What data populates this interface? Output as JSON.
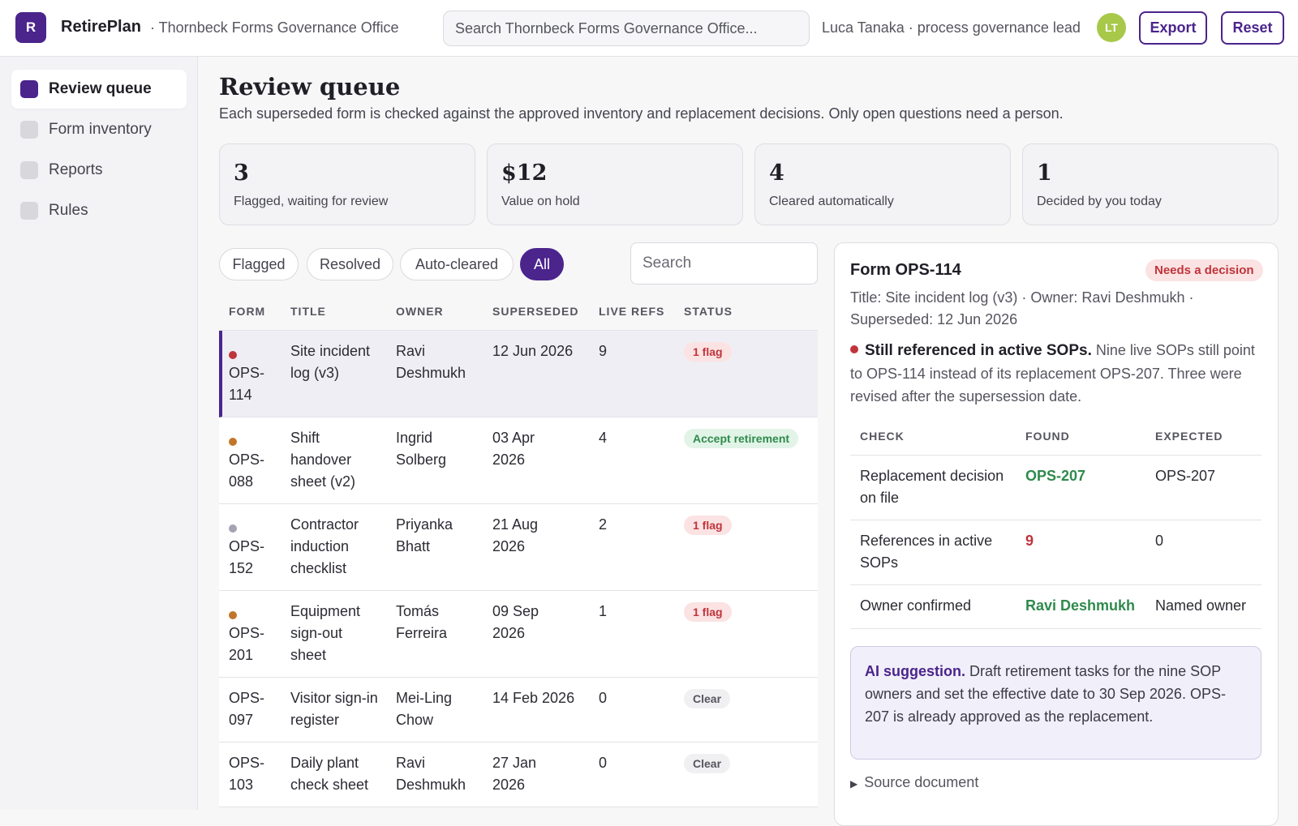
{
  "header": {
    "logo_letter": "R",
    "app_name": "RetirePlan",
    "org_name": "· Thornbeck Forms Governance Office",
    "search_placeholder": "Search Thornbeck Forms Governance Office...",
    "user_label": "Luca Tanaka · process governance lead",
    "avatar_initials": "LT",
    "export_label": "Export",
    "reset_label": "Reset"
  },
  "sidebar": {
    "items": [
      {
        "label": "Review queue",
        "active": true
      },
      {
        "label": "Form inventory",
        "active": false
      },
      {
        "label": "Reports",
        "active": false
      },
      {
        "label": "Rules",
        "active": false
      }
    ]
  },
  "main": {
    "title": "Review queue",
    "subtitle": "Each superseded form is checked against the approved inventory and replacement decisions. Only open questions need a person.",
    "stats": [
      {
        "value": "3",
        "label": "Flagged, waiting for review"
      },
      {
        "value": "$12",
        "label": "Value on hold"
      },
      {
        "value": "4",
        "label": "Cleared automatically"
      },
      {
        "value": "1",
        "label": "Decided by you today"
      }
    ],
    "filters": [
      "Flagged",
      "Resolved",
      "Auto-cleared",
      "All"
    ],
    "active_filter": "All",
    "search_placeholder": "Search"
  },
  "table": {
    "columns": [
      "FORM",
      "TITLE",
      "OWNER",
      "SUPERSEDED",
      "LIVE REFS",
      "STATUS"
    ],
    "rows": [
      {
        "form": "OPS-\n114",
        "title": "Site incident log (v3)",
        "owner": "Ravi Deshmukh",
        "superseded": "12 Jun 2026",
        "live_refs": "9",
        "status": "1 flag",
        "status_kind": "flag",
        "dot": "#c0343b",
        "selected": true
      },
      {
        "form": "OPS-\n088",
        "title": "Shift handover sheet (v2)",
        "owner": "Ingrid Solberg",
        "superseded": "03 Apr 2026",
        "live_refs": "4",
        "status": "Accept retirement",
        "status_kind": "accept",
        "dot": "#c2762a",
        "selected": false
      },
      {
        "form": "OPS-\n152",
        "title": "Contractor induction checklist",
        "owner": "Priyanka Bhatt",
        "superseded": "21 Aug 2026",
        "live_refs": "2",
        "status": "1 flag",
        "status_kind": "flag",
        "dot": "#a3a3b3",
        "selected": false
      },
      {
        "form": "OPS-\n201",
        "title": "Equipment sign-out sheet",
        "owner": "Tomás Ferreira",
        "superseded": "09 Sep 2026",
        "live_refs": "1",
        "status": "1 flag",
        "status_kind": "flag",
        "dot": "#c2762a",
        "selected": false
      },
      {
        "form": "OPS-\n097",
        "title": "Visitor sign-in register",
        "owner": "Mei-Ling Chow",
        "superseded": "14 Feb 2026",
        "live_refs": "0",
        "status": "Clear",
        "status_kind": "clear",
        "dot": "",
        "selected": false
      },
      {
        "form": "OPS-\n103",
        "title": "Daily plant check sheet",
        "owner": "Ravi Deshmukh",
        "superseded": "27 Jan 2026",
        "live_refs": "0",
        "status": "Clear",
        "status_kind": "clear",
        "dot": "",
        "selected": false
      }
    ]
  },
  "detail": {
    "title": "Form OPS-114",
    "badge": "Needs a decision",
    "meta": "Title: Site incident log (v3) · Owner: Ravi Deshmukh · Superseded: 12 Jun 2026",
    "finding_title": "Still referenced in active SOPs.",
    "finding_text": " Nine live SOPs still point to OPS-114 instead of its replacement OPS-207. Three were revised after the supersession date.",
    "check_columns": [
      "CHECK",
      "FOUND",
      "EXPECTED"
    ],
    "checks": [
      {
        "check": "Replacement decision on file",
        "found": "OPS-207",
        "found_kind": "green",
        "expected": "OPS-207"
      },
      {
        "check": "References in active SOPs",
        "found": "9",
        "found_kind": "red",
        "expected": "0"
      },
      {
        "check": "Owner confirmed",
        "found": "Ravi Deshmukh",
        "found_kind": "green",
        "expected": "Named owner"
      }
    ],
    "ai_title": "AI suggestion.",
    "ai_text": " Draft retirement tasks for the nine SOP owners and set the effective date to 30 Sep 2026. OPS-207 is already approved as the replacement.",
    "source_label": "Source document"
  },
  "colors": {
    "brand": "#4b248c",
    "flag": "#c0343b",
    "ok": "#2f8a4c"
  }
}
